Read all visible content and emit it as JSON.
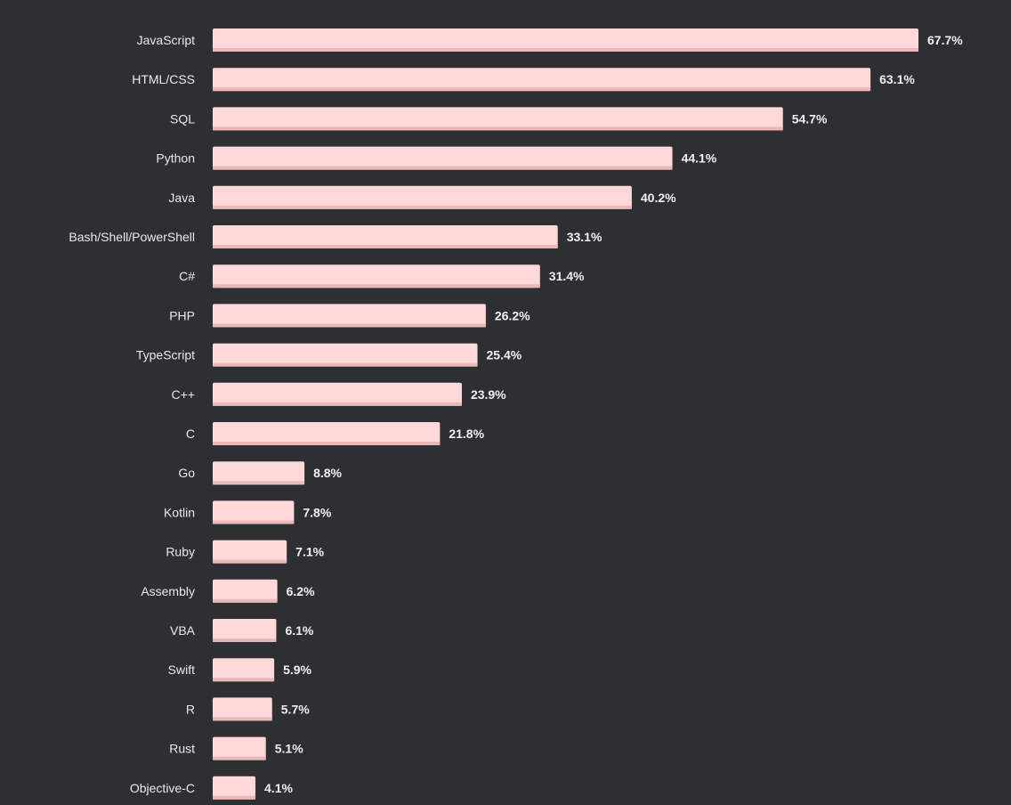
{
  "chart_data": {
    "type": "bar",
    "orientation": "horizontal",
    "title": "",
    "xlabel": "",
    "ylabel": "",
    "unit": "%",
    "xlim": [
      0,
      67.7
    ],
    "categories": [
      "JavaScript",
      "HTML/CSS",
      "SQL",
      "Python",
      "Java",
      "Bash/Shell/PowerShell",
      "C#",
      "PHP",
      "TypeScript",
      "C++",
      "C",
      "Go",
      "Kotlin",
      "Ruby",
      "Assembly",
      "VBA",
      "Swift",
      "R",
      "Rust",
      "Objective-C"
    ],
    "values": [
      67.7,
      63.1,
      54.7,
      44.1,
      40.2,
      33.1,
      31.4,
      26.2,
      25.4,
      23.9,
      21.8,
      8.8,
      7.8,
      7.1,
      6.2,
      6.1,
      5.9,
      5.7,
      5.1,
      4.1
    ],
    "value_labels": [
      "67.7%",
      "63.1%",
      "54.7%",
      "44.1%",
      "40.2%",
      "33.1%",
      "31.4%",
      "26.2%",
      "25.4%",
      "23.9%",
      "21.8%",
      "8.8%",
      "7.8%",
      "7.1%",
      "6.2%",
      "6.1%",
      "5.9%",
      "5.7%",
      "5.1%",
      "4.1%"
    ]
  },
  "colors": {
    "background": "#2d2f33",
    "bar": "#ffd9d9",
    "bar_shade": "#e9b9b9",
    "category_text": "#e9eaec",
    "value_text": "#f0f1f2"
  }
}
